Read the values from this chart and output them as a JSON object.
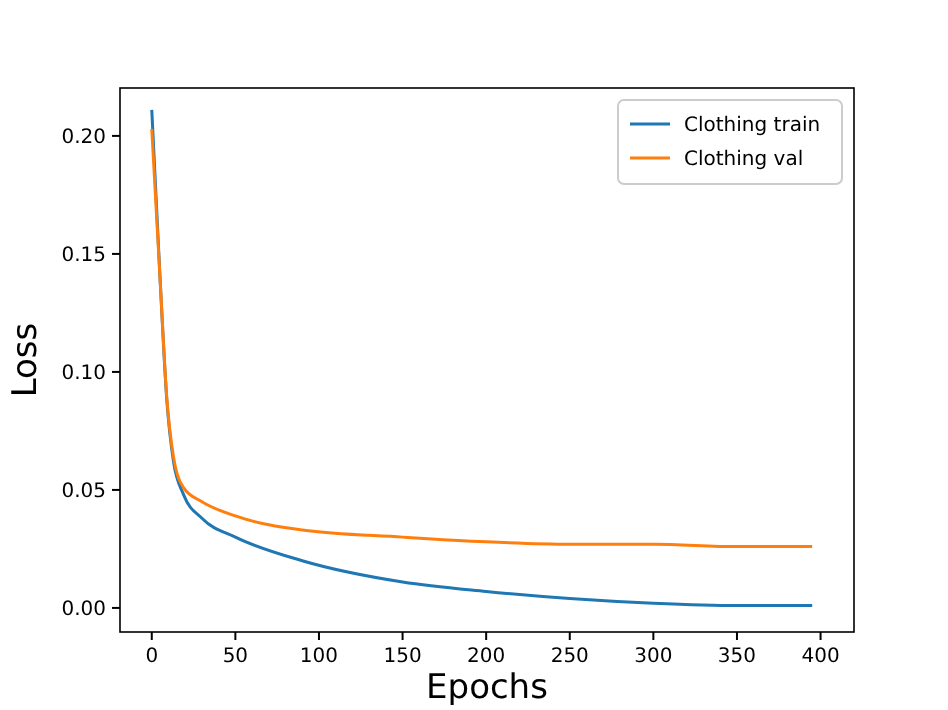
{
  "chart_data": {
    "type": "line",
    "xlabel": "Epochs",
    "ylabel": "Loss",
    "x": [
      0,
      5,
      9,
      13,
      19,
      30,
      50,
      90,
      150,
      200,
      250,
      300,
      350,
      395
    ],
    "series": [
      {
        "name": "Clothing train",
        "color": "#1f77b4",
        "values": [
          0.211,
          0.139,
          0.088,
          0.062,
          0.048,
          0.038,
          0.03,
          0.02,
          0.011,
          0.007,
          0.004,
          0.002,
          0.001,
          0.001
        ]
      },
      {
        "name": "Clothing val",
        "color": "#ff7f0e",
        "values": [
          0.203,
          0.139,
          0.089,
          0.064,
          0.051,
          0.045,
          0.039,
          0.033,
          0.03,
          0.028,
          0.027,
          0.027,
          0.026,
          0.026
        ]
      }
    ],
    "xlim": [
      -19,
      420
    ],
    "ylim": [
      -0.0102,
      0.2203
    ],
    "xticks": [
      0,
      50,
      100,
      150,
      200,
      250,
      300,
      350,
      400
    ],
    "yticks": [
      {
        "value": 0,
        "label": "0.00"
      },
      {
        "value": 0.05,
        "label": "0.05"
      },
      {
        "value": 0.1,
        "label": "0.10"
      },
      {
        "value": 0.15,
        "label": "0.15"
      },
      {
        "value": 0.2,
        "label": "0.20"
      }
    ],
    "legend": "top right",
    "grid": false,
    "marker": "none",
    "line_style": "solid"
  }
}
